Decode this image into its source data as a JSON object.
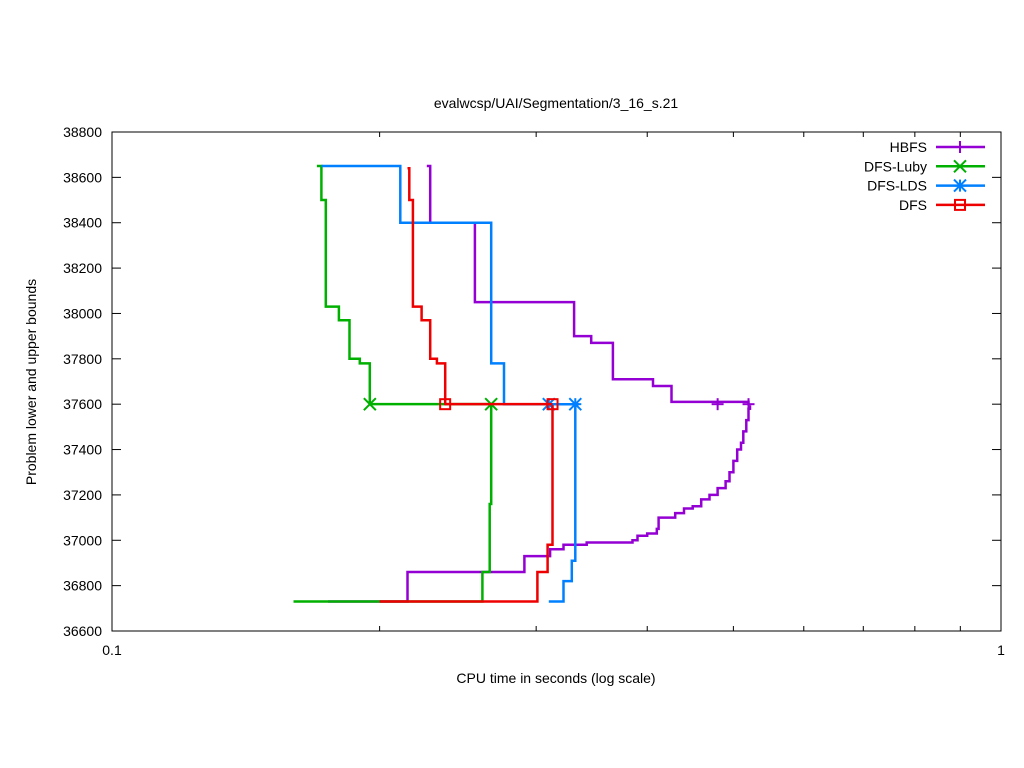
{
  "chart_data": {
    "type": "line",
    "title": "evalwcsp/UAI/Segmentation/3_16_s.21",
    "xlabel": "CPU time in seconds (log scale)",
    "ylabel": "Problem lower and upper bounds",
    "x_scale": "log",
    "xlim": [
      0.1,
      1
    ],
    "ylim": [
      36600,
      38800
    ],
    "x_ticks": [
      0.1,
      1
    ],
    "x_tick_labels": [
      "0.1",
      "1"
    ],
    "x_minor_ticks": [
      0.2,
      0.3,
      0.4,
      0.5,
      0.6,
      0.7,
      0.8,
      0.9
    ],
    "y_ticks": [
      36600,
      36800,
      37000,
      37200,
      37400,
      37600,
      37800,
      38000,
      38200,
      38400,
      38600,
      38800
    ],
    "y_tick_labels": [
      "36600",
      "36800",
      "37000",
      "37200",
      "37400",
      "37600",
      "37800",
      "38000",
      "38200",
      "38400",
      "38600",
      "38800"
    ],
    "grid": false,
    "legend_position": "top-right",
    "series": [
      {
        "name": "HBFS",
        "color": "#9400d3",
        "marker": "plus",
        "upper": [
          [
            0.226,
            38650
          ],
          [
            0.228,
            38400
          ],
          [
            0.255,
            38400
          ],
          [
            0.256,
            38050
          ],
          [
            0.33,
            38050
          ],
          [
            0.331,
            37900
          ],
          [
            0.345,
            37900
          ],
          [
            0.346,
            37870
          ],
          [
            0.365,
            37870
          ],
          [
            0.366,
            37710
          ],
          [
            0.405,
            37710
          ],
          [
            0.406,
            37680
          ],
          [
            0.425,
            37680
          ],
          [
            0.426,
            37610
          ],
          [
            0.52,
            37610
          ],
          [
            0.52,
            37595
          ]
        ],
        "lower": [
          [
            0.175,
            36730
          ],
          [
            0.214,
            36730
          ],
          [
            0.215,
            36860
          ],
          [
            0.29,
            36860
          ],
          [
            0.291,
            36930
          ],
          [
            0.31,
            36930
          ],
          [
            0.311,
            36960
          ],
          [
            0.32,
            36960
          ],
          [
            0.322,
            36980
          ],
          [
            0.34,
            36980
          ],
          [
            0.342,
            36990
          ],
          [
            0.36,
            36990
          ],
          [
            0.385,
            37000
          ],
          [
            0.39,
            37020
          ],
          [
            0.4,
            37030
          ],
          [
            0.41,
            37050
          ],
          [
            0.412,
            37100
          ],
          [
            0.43,
            37120
          ],
          [
            0.44,
            37140
          ],
          [
            0.45,
            37150
          ],
          [
            0.46,
            37180
          ],
          [
            0.47,
            37200
          ],
          [
            0.48,
            37230
          ],
          [
            0.49,
            37260
          ],
          [
            0.495,
            37300
          ],
          [
            0.5,
            37350
          ],
          [
            0.505,
            37400
          ],
          [
            0.51,
            37430
          ],
          [
            0.513,
            37480
          ],
          [
            0.517,
            37530
          ],
          [
            0.52,
            37580
          ],
          [
            0.522,
            37595
          ]
        ],
        "markers": [
          [
            0.48,
            37600
          ],
          [
            0.52,
            37600
          ]
        ]
      },
      {
        "name": "DFS-Luby",
        "color": "#00b000",
        "marker": "x",
        "upper": [
          [
            0.17,
            38650
          ],
          [
            0.172,
            38500
          ],
          [
            0.174,
            38030
          ],
          [
            0.178,
            38030
          ],
          [
            0.18,
            37970
          ],
          [
            0.183,
            37970
          ],
          [
            0.185,
            37800
          ],
          [
            0.188,
            37800
          ],
          [
            0.19,
            37780
          ],
          [
            0.195,
            37780
          ],
          [
            0.195,
            37595
          ]
        ],
        "lower": [
          [
            0.16,
            36730
          ],
          [
            0.26,
            36730
          ],
          [
            0.261,
            36860
          ],
          [
            0.265,
            36860
          ],
          [
            0.266,
            37160
          ],
          [
            0.267,
            37595
          ]
        ],
        "markers": [
          [
            0.195,
            37600
          ],
          [
            0.267,
            37600
          ]
        ],
        "bridge": [
          [
            0.195,
            37600
          ],
          [
            0.267,
            37600
          ]
        ]
      },
      {
        "name": "DFS-LDS",
        "color": "#0080ff",
        "marker": "star",
        "upper": [
          [
            0.172,
            38650
          ],
          [
            0.21,
            38650
          ],
          [
            0.211,
            38400
          ],
          [
            0.265,
            38400
          ],
          [
            0.267,
            37780
          ],
          [
            0.275,
            37780
          ],
          [
            0.276,
            37600
          ],
          [
            0.335,
            37600
          ]
        ],
        "lower": [
          [
            0.31,
            36730
          ],
          [
            0.32,
            36730
          ],
          [
            0.322,
            36820
          ],
          [
            0.327,
            36820
          ],
          [
            0.329,
            36910
          ],
          [
            0.331,
            36910
          ],
          [
            0.332,
            37595
          ]
        ],
        "markers": [
          [
            0.31,
            37600
          ],
          [
            0.332,
            37600
          ]
        ]
      },
      {
        "name": "DFS",
        "color": "#ee0000",
        "marker": "square",
        "upper": [
          [
            0.215,
            38640
          ],
          [
            0.216,
            38500
          ],
          [
            0.218,
            38030
          ],
          [
            0.221,
            38030
          ],
          [
            0.223,
            37970
          ],
          [
            0.226,
            37970
          ],
          [
            0.228,
            37800
          ],
          [
            0.23,
            37800
          ],
          [
            0.232,
            37780
          ],
          [
            0.237,
            37780
          ],
          [
            0.237,
            37595
          ]
        ],
        "lower": [
          [
            0.2,
            36730
          ],
          [
            0.3,
            36730
          ],
          [
            0.301,
            36860
          ],
          [
            0.308,
            36860
          ],
          [
            0.309,
            36980
          ],
          [
            0.312,
            36980
          ],
          [
            0.313,
            37595
          ]
        ],
        "markers": [
          [
            0.237,
            37600
          ],
          [
            0.313,
            37600
          ]
        ],
        "bridge": [
          [
            0.237,
            37600
          ],
          [
            0.313,
            37600
          ]
        ]
      }
    ]
  }
}
